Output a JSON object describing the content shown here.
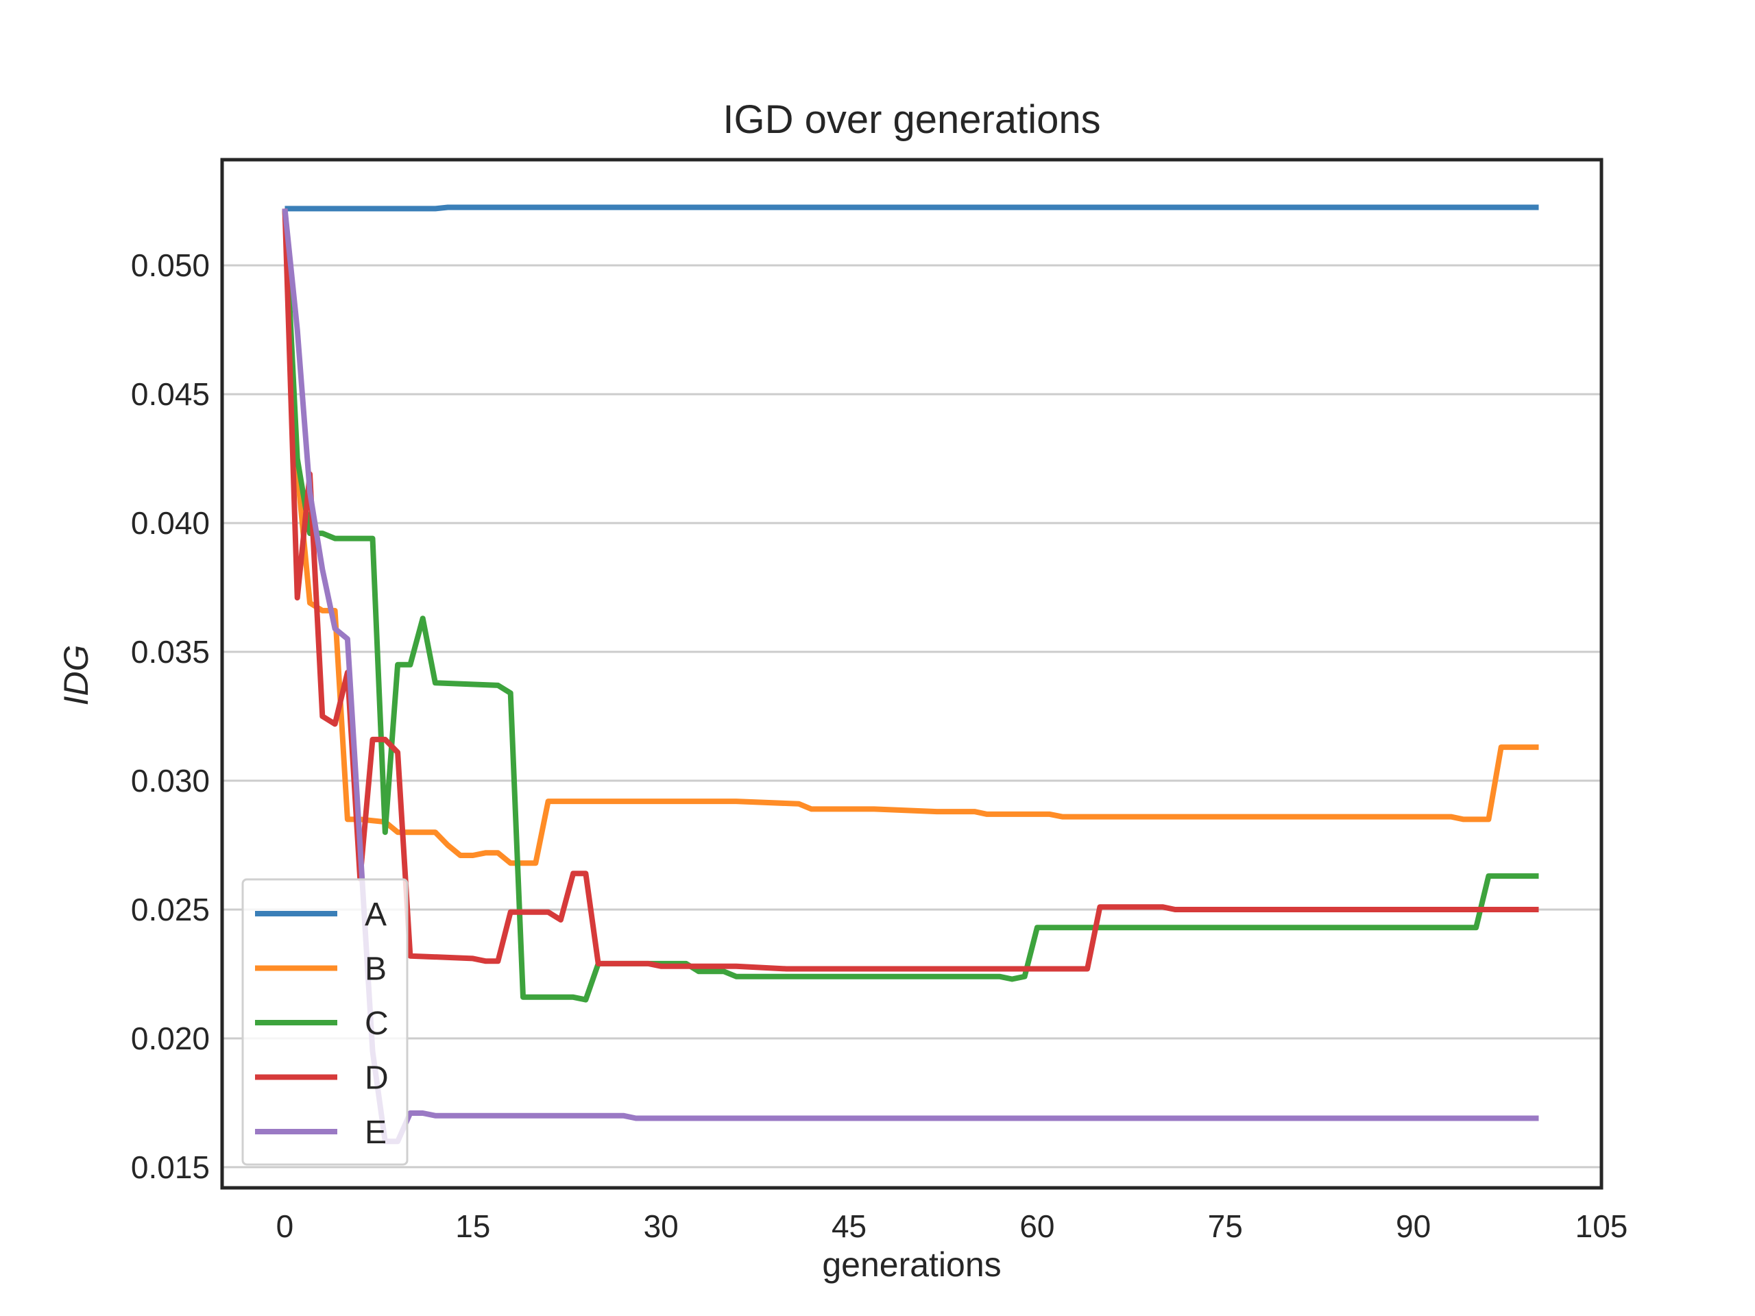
{
  "chart_data": {
    "type": "line",
    "title": "IGD over generations",
    "xlabel": "generations",
    "ylabel": "IDG",
    "xlim": [
      -5,
      105
    ],
    "ylim": [
      0.0142,
      0.0541
    ],
    "xticks": [
      0,
      15,
      30,
      45,
      60,
      75,
      90,
      105
    ],
    "xtick_labels": [
      "0",
      "15",
      "30",
      "45",
      "60",
      "75",
      "90",
      "105"
    ],
    "yticks": [
      0.015,
      0.02,
      0.025,
      0.03,
      0.035,
      0.04,
      0.045,
      0.05
    ],
    "ytick_labels": [
      "0.015",
      "0.020",
      "0.025",
      "0.030",
      "0.035",
      "0.040",
      "0.045",
      "0.050"
    ],
    "grid": "horizontal",
    "legend_position": "lower-left",
    "series": [
      {
        "name": "A",
        "color": "#3a7fb8",
        "points": [
          [
            0,
            0.0522
          ],
          [
            12,
            0.0522
          ],
          [
            13,
            0.05225
          ],
          [
            100,
            0.05225
          ]
        ]
      },
      {
        "name": "B",
        "color": "#ff8c26",
        "points": [
          [
            0,
            0.0522
          ],
          [
            1,
            0.042
          ],
          [
            2,
            0.0369
          ],
          [
            3,
            0.0366
          ],
          [
            4,
            0.0366
          ],
          [
            5,
            0.0285
          ],
          [
            6,
            0.0285
          ],
          [
            8,
            0.0284
          ],
          [
            9,
            0.028
          ],
          [
            12,
            0.028
          ],
          [
            13,
            0.0275
          ],
          [
            14,
            0.0271
          ],
          [
            15,
            0.0271
          ],
          [
            16,
            0.0272
          ],
          [
            17,
            0.0272
          ],
          [
            18,
            0.0268
          ],
          [
            20,
            0.0268
          ],
          [
            21,
            0.0292
          ],
          [
            36,
            0.0292
          ],
          [
            41,
            0.0291
          ],
          [
            42,
            0.0289
          ],
          [
            47,
            0.0289
          ],
          [
            52,
            0.0288
          ],
          [
            55,
            0.0288
          ],
          [
            56,
            0.0287
          ],
          [
            61,
            0.0287
          ],
          [
            62,
            0.0286
          ],
          [
            93,
            0.0286
          ],
          [
            94,
            0.0285
          ],
          [
            96,
            0.0285
          ],
          [
            97,
            0.0313
          ],
          [
            100,
            0.0313
          ]
        ]
      },
      {
        "name": "C",
        "color": "#3da33d",
        "points": [
          [
            0,
            0.0522
          ],
          [
            1,
            0.0425
          ],
          [
            2,
            0.0396
          ],
          [
            3,
            0.0396
          ],
          [
            4,
            0.0394
          ],
          [
            7,
            0.0394
          ],
          [
            8,
            0.028
          ],
          [
            9,
            0.0345
          ],
          [
            10,
            0.0345
          ],
          [
            11,
            0.0363
          ],
          [
            12,
            0.0338
          ],
          [
            17,
            0.0337
          ],
          [
            18,
            0.0334
          ],
          [
            19,
            0.0216
          ],
          [
            23,
            0.0216
          ],
          [
            24,
            0.0215
          ],
          [
            25,
            0.0229
          ],
          [
            32,
            0.0229
          ],
          [
            33,
            0.0226
          ],
          [
            35,
            0.0226
          ],
          [
            36,
            0.0224
          ],
          [
            57,
            0.0224
          ],
          [
            58,
            0.0223
          ],
          [
            59,
            0.0224
          ],
          [
            60,
            0.0243
          ],
          [
            79,
            0.0243
          ],
          [
            95,
            0.0243
          ],
          [
            96,
            0.0263
          ],
          [
            100,
            0.0263
          ]
        ]
      },
      {
        "name": "D",
        "color": "#d63a3a",
        "points": [
          [
            0,
            0.0522
          ],
          [
            1,
            0.0371
          ],
          [
            2,
            0.0419
          ],
          [
            3,
            0.0325
          ],
          [
            4,
            0.0322
          ],
          [
            5,
            0.0342
          ],
          [
            6,
            0.0262
          ],
          [
            7,
            0.0316
          ],
          [
            8,
            0.0316
          ],
          [
            9,
            0.0311
          ],
          [
            10,
            0.0232
          ],
          [
            15,
            0.0231
          ],
          [
            16,
            0.023
          ],
          [
            17,
            0.023
          ],
          [
            18,
            0.0249
          ],
          [
            21,
            0.0249
          ],
          [
            22,
            0.0246
          ],
          [
            23,
            0.0264
          ],
          [
            24,
            0.0264
          ],
          [
            25,
            0.0229
          ],
          [
            29,
            0.0229
          ],
          [
            30,
            0.0228
          ],
          [
            36,
            0.0228
          ],
          [
            40,
            0.0227
          ],
          [
            64,
            0.0227
          ],
          [
            65,
            0.0251
          ],
          [
            70,
            0.0251
          ],
          [
            71,
            0.025
          ],
          [
            100,
            0.025
          ]
        ]
      },
      {
        "name": "E",
        "color": "#9a79c4",
        "points": [
          [
            0,
            0.0522
          ],
          [
            1,
            0.0475
          ],
          [
            2,
            0.0412
          ],
          [
            3,
            0.0382
          ],
          [
            4,
            0.0359
          ],
          [
            5,
            0.0355
          ],
          [
            6,
            0.0275
          ],
          [
            7,
            0.0195
          ],
          [
            8,
            0.016
          ],
          [
            9,
            0.016
          ],
          [
            10,
            0.0171
          ],
          [
            11,
            0.0171
          ],
          [
            12,
            0.017
          ],
          [
            20,
            0.017
          ],
          [
            27,
            0.017
          ],
          [
            28,
            0.0169
          ],
          [
            100,
            0.0169
          ]
        ]
      }
    ]
  }
}
